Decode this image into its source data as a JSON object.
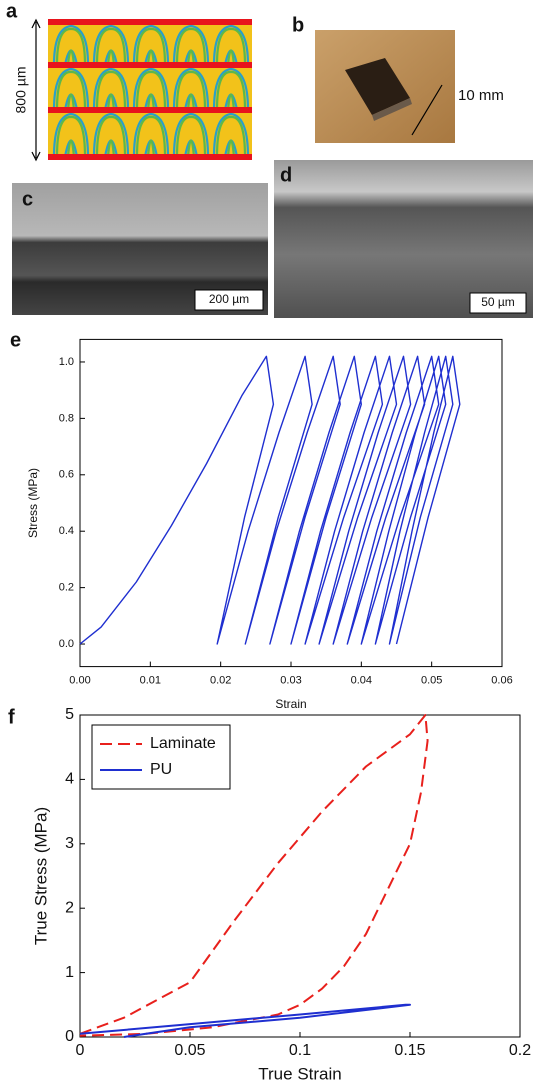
{
  "panels": [
    {
      "label": "a",
      "annotation": "800 µm"
    },
    {
      "label": "b",
      "annotation": "10 mm"
    },
    {
      "label": "c",
      "annotation": "200 µm"
    },
    {
      "label": "d",
      "annotation": "50 µm"
    }
  ],
  "chart_data": [
    {
      "type": "line",
      "panel_label": "e",
      "xlabel": "Strain",
      "ylabel": "Stress (MPa)",
      "xlim": [
        0,
        0.06
      ],
      "ylim": [
        -0.08,
        1.08
      ],
      "xticks": [
        {
          "value": 0,
          "label": "0.00"
        },
        {
          "value": 0.01,
          "label": "0.01"
        },
        {
          "value": 0.02,
          "label": "0.02"
        },
        {
          "value": 0.03,
          "label": "0.03"
        },
        {
          "value": 0.04,
          "label": "0.04"
        },
        {
          "value": 0.05,
          "label": "0.05"
        },
        {
          "value": 0.06,
          "label": "0.06"
        }
      ],
      "yticks": [
        {
          "value": 0,
          "label": "0.0"
        },
        {
          "value": 0.2,
          "label": "0.2"
        },
        {
          "value": 0.4,
          "label": "0.4"
        },
        {
          "value": 0.6,
          "label": "0.6"
        },
        {
          "value": 0.8,
          "label": "0.8"
        },
        {
          "value": 1,
          "label": "1.0"
        }
      ],
      "series": [
        {
          "color": "#1f2fd0",
          "dash": false,
          "x": [
            0,
            0.003,
            0.008,
            0.013,
            0.018,
            0.023,
            0.0265,
            0.0275,
            0.0234,
            0.0195,
            0.0239,
            0.0283,
            0.032,
            0.033,
            0.0282,
            0.0235,
            0.0279,
            0.0323,
            0.036,
            0.037,
            0.032,
            0.027,
            0.0312,
            0.0354,
            0.039,
            0.04,
            0.035,
            0.03,
            0.0342,
            0.0384,
            0.042,
            0.043,
            0.0375,
            0.032,
            0.0362,
            0.0404,
            0.044,
            0.045,
            0.0395,
            0.034,
            0.0382,
            0.0424,
            0.046,
            0.047,
            0.0415,
            0.036,
            0.0402,
            0.0444,
            0.048,
            0.049,
            0.0435,
            0.038,
            0.0422,
            0.0464,
            0.05,
            0.051,
            0.0455,
            0.04,
            0.0439,
            0.0477,
            0.051,
            0.052,
            0.047,
            0.042,
            0.0455,
            0.049,
            0.052,
            0.053,
            0.0484,
            0.044,
            0.0472,
            0.0503,
            0.053,
            0.054,
            0.0495,
            0.045
          ],
          "values": [
            0,
            0.06,
            0.22,
            0.42,
            0.64,
            0.88,
            1.02,
            0.85,
            0.45,
            0,
            0.4,
            0.75,
            1.02,
            0.85,
            0.45,
            0,
            0.4,
            0.75,
            1.02,
            0.85,
            0.45,
            0,
            0.4,
            0.75,
            1.02,
            0.85,
            0.45,
            0,
            0.4,
            0.75,
            1.02,
            0.85,
            0.45,
            0,
            0.4,
            0.75,
            1.02,
            0.85,
            0.45,
            0,
            0.4,
            0.75,
            1.02,
            0.85,
            0.45,
            0,
            0.4,
            0.75,
            1.02,
            0.85,
            0.45,
            0,
            0.4,
            0.75,
            1.02,
            0.85,
            0.45,
            0,
            0.4,
            0.75,
            1.02,
            0.85,
            0.45,
            0,
            0.4,
            0.75,
            1.02,
            0.85,
            0.45,
            0,
            0.4,
            0.75,
            1.02,
            0.85,
            0.45,
            0
          ]
        }
      ]
    },
    {
      "type": "line",
      "panel_label": "f",
      "xlabel": "True Strain",
      "ylabel": "True Stress (MPa)",
      "xlim": [
        0,
        0.2
      ],
      "ylim": [
        0,
        5
      ],
      "xticks": [
        0,
        0.05,
        0.1,
        0.15,
        0.2
      ],
      "yticks": [
        0,
        1,
        2,
        3,
        4,
        5
      ],
      "legend": "upper left",
      "series": [
        {
          "name": "Laminate",
          "color": "#e8201c",
          "dash": true,
          "x": [
            0,
            0.02,
            0.05,
            0.07,
            0.09,
            0.11,
            0.13,
            0.15,
            0.157,
            0.158,
            0.155,
            0.15,
            0.14,
            0.13,
            0.12,
            0.11,
            0.1,
            0.09,
            0.06,
            0.03,
            0
          ],
          "values": [
            0.05,
            0.3,
            0.85,
            1.8,
            2.7,
            3.5,
            4.2,
            4.7,
            5.0,
            4.6,
            3.8,
            3.0,
            2.3,
            1.6,
            1.1,
            0.75,
            0.5,
            0.35,
            0.15,
            0.05,
            0.02
          ]
        },
        {
          "name": "PU",
          "color": "#1f2fd0",
          "dash": false,
          "x": [
            0.02,
            0.05,
            0.1,
            0.15,
            0.148,
            0.1,
            0.05,
            0
          ],
          "values": [
            0,
            0.15,
            0.3,
            0.5,
            0.5,
            0.35,
            0.2,
            0.05
          ]
        }
      ]
    }
  ]
}
